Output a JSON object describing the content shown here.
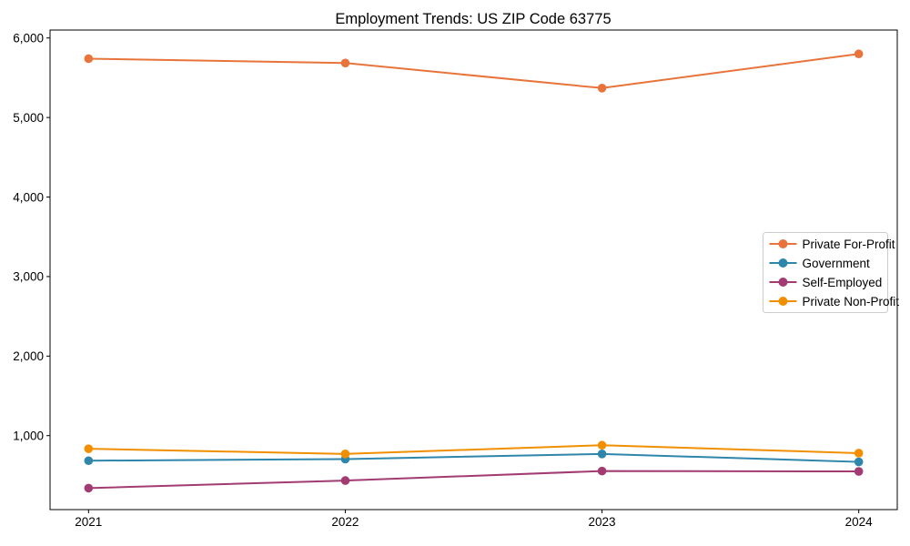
{
  "chart_data": {
    "type": "line",
    "title": "Employment Trends: US ZIP Code 63775",
    "x": [
      2021,
      2022,
      2023,
      2024
    ],
    "x_tick_labels": [
      "2021",
      "2022",
      "2023",
      "2024"
    ],
    "series": [
      {
        "name": "Private For-Profit",
        "color": "#E8743B",
        "values": [
          5740,
          5685,
          5370,
          5800
        ]
      },
      {
        "name": "Government",
        "color": "#2E86AB",
        "values": [
          685,
          705,
          770,
          670
        ]
      },
      {
        "name": "Self-Employed",
        "color": "#A23B72",
        "values": [
          340,
          435,
          555,
          550
        ]
      },
      {
        "name": "Private Non-Profit",
        "color": "#F18F01",
        "values": [
          835,
          770,
          880,
          780
        ]
      }
    ],
    "y_ticks": [
      {
        "value": 1000,
        "label": "1,000"
      },
      {
        "value": 2000,
        "label": "2,000"
      },
      {
        "value": 3000,
        "label": "3,000"
      },
      {
        "value": 4000,
        "label": "4,000"
      },
      {
        "value": 5000,
        "label": "5,000"
      },
      {
        "value": 6000,
        "label": "6,000"
      }
    ],
    "xlabel": "",
    "ylabel": "",
    "xlim": [
      2020.85,
      2024.15
    ],
    "ylim": [
      70,
      6100
    ],
    "grid": false,
    "legend": {
      "position": "center-right",
      "entries": [
        "Private For-Profit",
        "Government",
        "Self-Employed",
        "Private Non-Profit"
      ]
    },
    "colors": {
      "background": "#ffffff",
      "spine": "#000000",
      "text": "#000000",
      "legend_border": "#cccccc",
      "legend_background": "#ffffff"
    }
  }
}
